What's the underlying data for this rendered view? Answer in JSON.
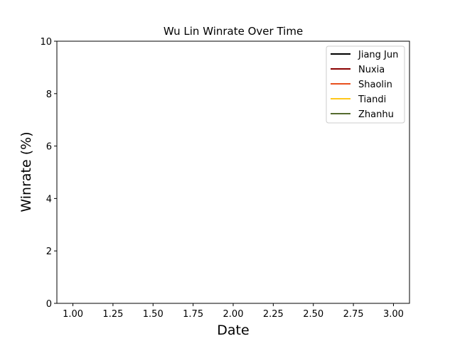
{
  "chart_data": {
    "type": "line",
    "title": "Wu Lin Winrate Over Time",
    "xlabel": "Date",
    "ylabel": "Winrate (%)",
    "xlim": [
      0.9,
      3.1
    ],
    "ylim": [
      0,
      10
    ],
    "xticks": [
      1.0,
      1.25,
      1.5,
      1.75,
      2.0,
      2.25,
      2.5,
      2.75,
      3.0
    ],
    "xtick_labels": [
      "1.00",
      "1.25",
      "1.50",
      "1.75",
      "2.00",
      "2.25",
      "2.50",
      "2.75",
      "3.00"
    ],
    "yticks": [
      0,
      2,
      4,
      6,
      8,
      10
    ],
    "ytick_labels": [
      "0",
      "2",
      "4",
      "6",
      "8",
      "10"
    ],
    "grid": false,
    "legend_position": "top-right",
    "series": [
      {
        "name": "Jiang Jun",
        "color": "#000000",
        "x": [],
        "y": []
      },
      {
        "name": "Nuxia",
        "color": "#8b0000",
        "x": [],
        "y": []
      },
      {
        "name": "Shaolin",
        "color": "#e8501e",
        "x": [],
        "y": []
      },
      {
        "name": "Tiandi",
        "color": "#ffc71a",
        "x": [],
        "y": []
      },
      {
        "name": "Zhanhu",
        "color": "#556b2f",
        "x": [],
        "y": []
      }
    ]
  }
}
